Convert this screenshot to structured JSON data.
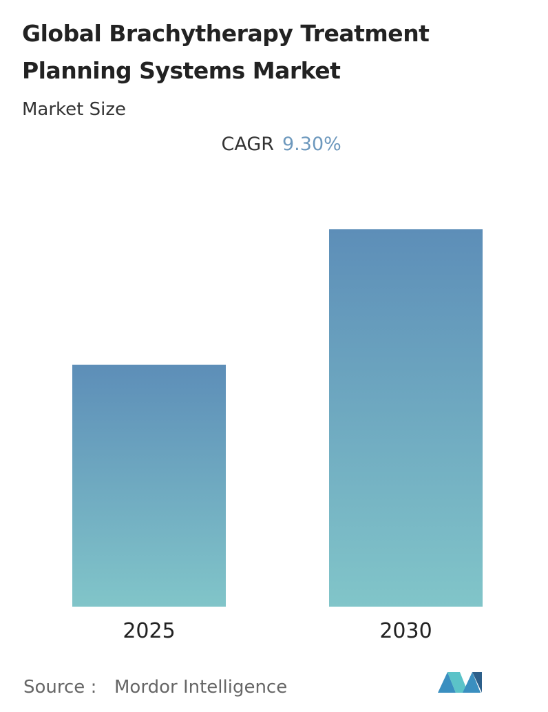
{
  "chart_data": {
    "type": "bar",
    "title": [
      "Global Brachytherapy Treatment",
      "Planning Systems Market"
    ],
    "subtitle": "Market Size",
    "cagr_label": "CAGR",
    "cagr_value": "9.30%",
    "categories": [
      "2025",
      "2030"
    ],
    "values": [
      100,
      156
    ],
    "gradient": [
      "#5d8eb8",
      "#81c5c9"
    ],
    "source_label": "Source :",
    "source": "Mordor Intelligence"
  }
}
